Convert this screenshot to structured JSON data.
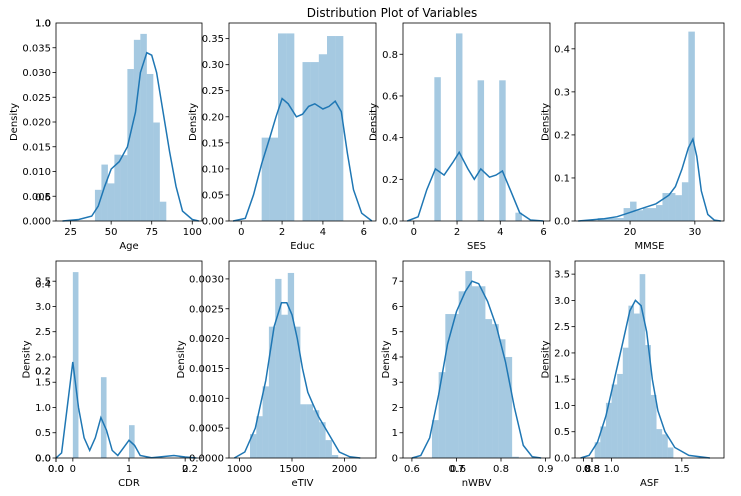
{
  "figure": {
    "title": "Distribution Plot of Variables"
  },
  "styles": {
    "bar_fill": "#1f77b4",
    "bar_opacity": 0.4,
    "line_color": "#1f77b4"
  },
  "overlay": {
    "xticks": [
      "0.0",
      "0.2",
      "0.4",
      "0.6",
      "0.8",
      "1.0"
    ],
    "yticks": [
      "0.0",
      "0.2",
      "0.4",
      "0.6",
      "0.8",
      "1.0"
    ]
  },
  "chart_data": [
    {
      "type": "histogram",
      "xlabel": "Age",
      "ylabel": "Density",
      "xlim": [
        16,
        106
      ],
      "ylim": [
        0,
        0.04
      ],
      "xticks": [
        "25",
        "50",
        "75",
        "100"
      ],
      "xtick_values": [
        25,
        50,
        75,
        100
      ],
      "yticks": [
        "0.000",
        "0.005",
        "0.010",
        "0.015",
        "0.020",
        "0.025",
        "0.030",
        "0.035"
      ],
      "ytick_values": [
        0,
        0.005,
        0.01,
        0.015,
        0.02,
        0.025,
        0.03,
        0.035
      ],
      "bins": [
        [
          40,
          44,
          0.0063
        ],
        [
          44,
          48,
          0.0114
        ],
        [
          48,
          52,
          0.0076
        ],
        [
          52,
          56,
          0.0134
        ],
        [
          56,
          60,
          0.0133
        ],
        [
          60,
          64,
          0.0307
        ],
        [
          64,
          68,
          0.0366
        ],
        [
          68,
          72,
          0.0378
        ],
        [
          72,
          76,
          0.0297
        ],
        [
          76,
          80,
          0.0199
        ],
        [
          80,
          84,
          0.0039
        ]
      ],
      "kde": [
        [
          20,
          0
        ],
        [
          30,
          0.0003
        ],
        [
          38,
          0.001
        ],
        [
          42,
          0.003
        ],
        [
          46,
          0.007
        ],
        [
          50,
          0.0105
        ],
        [
          55,
          0.012
        ],
        [
          60,
          0.015
        ],
        [
          65,
          0.022
        ],
        [
          68,
          0.03
        ],
        [
          72,
          0.034
        ],
        [
          75,
          0.0335
        ],
        [
          78,
          0.03
        ],
        [
          82,
          0.022
        ],
        [
          86,
          0.014
        ],
        [
          90,
          0.007
        ],
        [
          94,
          0.002
        ],
        [
          100,
          0.0003
        ],
        [
          104,
          0
        ]
      ]
    },
    {
      "type": "histogram",
      "xlabel": "Educ",
      "ylabel": "Density",
      "xlim": [
        -0.6,
        6.6
      ],
      "ylim": [
        0,
        0.38
      ],
      "xticks": [
        "0",
        "2",
        "4",
        "6"
      ],
      "xtick_values": [
        0,
        2,
        4,
        6
      ],
      "yticks": [
        "0.00",
        "0.05",
        "0.10",
        "0.15",
        "0.20",
        "0.25",
        "0.30",
        "0.35"
      ],
      "ytick_values": [
        0,
        0.05,
        0.1,
        0.15,
        0.2,
        0.25,
        0.3,
        0.35
      ],
      "bins": [
        [
          1.0,
          1.4,
          0.16
        ],
        [
          1.4,
          1.8,
          0.16
        ],
        [
          1.8,
          2.2,
          0.36
        ],
        [
          2.2,
          2.6,
          0.36
        ],
        [
          3.0,
          3.4,
          0.305
        ],
        [
          3.4,
          3.8,
          0.305
        ],
        [
          3.8,
          4.2,
          0.32
        ],
        [
          4.2,
          4.6,
          0.355
        ],
        [
          4.6,
          5.0,
          0.355
        ]
      ],
      "kde": [
        [
          -0.4,
          0
        ],
        [
          0.2,
          0.005
        ],
        [
          0.6,
          0.05
        ],
        [
          1.0,
          0.11
        ],
        [
          1.4,
          0.16
        ],
        [
          1.7,
          0.2
        ],
        [
          2.0,
          0.235
        ],
        [
          2.3,
          0.225
        ],
        [
          2.7,
          0.2
        ],
        [
          3.0,
          0.205
        ],
        [
          3.3,
          0.22
        ],
        [
          3.6,
          0.225
        ],
        [
          4.0,
          0.215
        ],
        [
          4.3,
          0.22
        ],
        [
          4.6,
          0.23
        ],
        [
          4.9,
          0.21
        ],
        [
          5.2,
          0.13
        ],
        [
          5.5,
          0.06
        ],
        [
          5.9,
          0.015
        ],
        [
          6.4,
          0
        ]
      ]
    },
    {
      "type": "histogram",
      "xlabel": "SES",
      "ylabel": "Density",
      "xlim": [
        -0.5,
        6.3
      ],
      "ylim": [
        0,
        0.95
      ],
      "xticks": [
        "0",
        "2",
        "4",
        "6"
      ],
      "xtick_values": [
        0,
        2,
        4,
        6
      ],
      "yticks": [
        "0.0",
        "0.2",
        "0.4",
        "0.6",
        "0.8"
      ],
      "ytick_values": [
        0,
        0.2,
        0.4,
        0.6,
        0.8
      ],
      "bins": [
        [
          0.95,
          1.25,
          0.69
        ],
        [
          1.95,
          2.25,
          0.9
        ],
        [
          2.95,
          3.25,
          0.675
        ],
        [
          3.95,
          4.25,
          0.675
        ],
        [
          4.7,
          5.0,
          0.04
        ]
      ],
      "kde": [
        [
          -0.3,
          0
        ],
        [
          0.2,
          0.02
        ],
        [
          0.6,
          0.15
        ],
        [
          1.0,
          0.25
        ],
        [
          1.4,
          0.22
        ],
        [
          1.8,
          0.28
        ],
        [
          2.1,
          0.33
        ],
        [
          2.5,
          0.25
        ],
        [
          2.8,
          0.2
        ],
        [
          3.1,
          0.25
        ],
        [
          3.5,
          0.21
        ],
        [
          3.8,
          0.22
        ],
        [
          4.1,
          0.24
        ],
        [
          4.5,
          0.14
        ],
        [
          4.9,
          0.04
        ],
        [
          5.4,
          0.005
        ],
        [
          6.0,
          0
        ]
      ]
    },
    {
      "type": "histogram",
      "xlabel": "MMSE",
      "ylabel": "Density",
      "xlim": [
        11.5,
        34.5
      ],
      "ylim": [
        0,
        0.46
      ],
      "xticks": [
        "20",
        "30"
      ],
      "xtick_values": [
        20,
        30
      ],
      "yticks": [
        "0.0",
        "0.1",
        "0.2",
        "0.3",
        "0.4"
      ],
      "ytick_values": [
        0,
        0.1,
        0.2,
        0.3,
        0.4
      ],
      "bins": [
        [
          15,
          16,
          0.007
        ],
        [
          16,
          17,
          0.007
        ],
        [
          17,
          18,
          0.007
        ],
        [
          18,
          19,
          0.007
        ],
        [
          19,
          20,
          0.03
        ],
        [
          20,
          21,
          0.045
        ],
        [
          21,
          22,
          0.025
        ],
        [
          22,
          23,
          0.03
        ],
        [
          23,
          24,
          0.03
        ],
        [
          24,
          25,
          0.037
        ],
        [
          25,
          26,
          0.065
        ],
        [
          26,
          27,
          0.065
        ],
        [
          27,
          28,
          0.06
        ],
        [
          28,
          29,
          0.09
        ],
        [
          29,
          30,
          0.44
        ]
      ],
      "kde": [
        [
          12,
          0
        ],
        [
          16,
          0.005
        ],
        [
          18,
          0.01
        ],
        [
          20,
          0.02
        ],
        [
          22,
          0.03
        ],
        [
          24,
          0.04
        ],
        [
          26,
          0.06
        ],
        [
          27,
          0.08
        ],
        [
          28,
          0.12
        ],
        [
          29,
          0.17
        ],
        [
          29.7,
          0.19
        ],
        [
          30.3,
          0.15
        ],
        [
          31,
          0.07
        ],
        [
          32,
          0.015
        ],
        [
          33,
          0.002
        ],
        [
          34,
          0
        ]
      ]
    },
    {
      "type": "histogram",
      "xlabel": "CDR",
      "ylabel": "Density",
      "xlim": [
        -0.3,
        2.3
      ],
      "ylim": [
        0,
        3.9
      ],
      "xticks": [
        "0",
        "1",
        "2"
      ],
      "xtick_values": [
        0,
        1,
        2
      ],
      "yticks": [
        "0.0",
        "0.5",
        "1.0",
        "1.5",
        "2.0",
        "2.5",
        "3.0",
        "3.5"
      ],
      "ytick_values": [
        0,
        0.5,
        1.0,
        1.5,
        2.0,
        2.5,
        3.0,
        3.5
      ],
      "bins": [
        [
          0,
          0.1,
          3.68
        ],
        [
          0.5,
          0.6,
          1.6
        ],
        [
          1.0,
          1.1,
          0.65
        ],
        [
          1.9,
          2.0,
          0.02
        ]
      ],
      "kde": [
        [
          -0.3,
          0
        ],
        [
          -0.2,
          0.1
        ],
        [
          -0.1,
          1.0
        ],
        [
          0,
          1.9
        ],
        [
          0.1,
          1.0
        ],
        [
          0.2,
          0.4
        ],
        [
          0.3,
          0.15
        ],
        [
          0.4,
          0.4
        ],
        [
          0.5,
          0.8
        ],
        [
          0.6,
          0.55
        ],
        [
          0.7,
          0.15
        ],
        [
          0.8,
          0.05
        ],
        [
          0.9,
          0.2
        ],
        [
          1.0,
          0.35
        ],
        [
          1.1,
          0.25
        ],
        [
          1.2,
          0.05
        ],
        [
          1.4,
          0.005
        ],
        [
          1.8,
          0.05
        ],
        [
          2.0,
          0.02
        ],
        [
          2.2,
          0
        ]
      ]
    },
    {
      "type": "histogram",
      "xlabel": "eTIV",
      "ylabel": "Density",
      "xlim": [
        900,
        2300
      ],
      "ylim": [
        0,
        0.0033
      ],
      "xticks": [
        "1000",
        "1500",
        "2000"
      ],
      "xtick_values": [
        1000,
        1500,
        2000
      ],
      "yticks": [
        "0.0000",
        "0.0005",
        "0.0010",
        "0.0015",
        "0.0020",
        "0.0025",
        "0.0030"
      ],
      "ytick_values": [
        0,
        0.0005,
        0.001,
        0.0015,
        0.002,
        0.0025,
        0.003
      ],
      "bins": [
        [
          1100,
          1160,
          0.0004
        ],
        [
          1160,
          1220,
          0.0007
        ],
        [
          1220,
          1280,
          0.0012
        ],
        [
          1280,
          1340,
          0.0022
        ],
        [
          1340,
          1400,
          0.003
        ],
        [
          1400,
          1460,
          0.0024
        ],
        [
          1460,
          1520,
          0.0031
        ],
        [
          1520,
          1580,
          0.0022
        ],
        [
          1580,
          1640,
          0.0009
        ],
        [
          1640,
          1700,
          0.0009
        ],
        [
          1700,
          1760,
          0.0008
        ],
        [
          1760,
          1820,
          0.0006
        ],
        [
          1820,
          1880,
          0.0003
        ],
        [
          1880,
          1940,
          5e-05
        ]
      ],
      "kde": [
        [
          950,
          0
        ],
        [
          1050,
          0.0001
        ],
        [
          1150,
          0.0005
        ],
        [
          1250,
          0.0013
        ],
        [
          1330,
          0.0022
        ],
        [
          1400,
          0.0026
        ],
        [
          1450,
          0.0026
        ],
        [
          1500,
          0.0024
        ],
        [
          1550,
          0.002
        ],
        [
          1600,
          0.0015
        ],
        [
          1650,
          0.0011
        ],
        [
          1700,
          0.0009
        ],
        [
          1750,
          0.0007
        ],
        [
          1850,
          0.0004
        ],
        [
          1950,
          0.0001
        ],
        [
          2050,
          2e-05
        ],
        [
          2150,
          0
        ]
      ]
    },
    {
      "type": "histogram",
      "xlabel": "nWBV",
      "ylabel": "Density",
      "xlim": [
        0.58,
        0.91
      ],
      "ylim": [
        0,
        7.8
      ],
      "xticks": [
        "0.6",
        "0.7",
        "0.8",
        "0.9"
      ],
      "xtick_values": [
        0.6,
        0.7,
        0.8,
        0.9
      ],
      "yticks": [
        "0",
        "1",
        "2",
        "3",
        "4",
        "5",
        "6",
        "7"
      ],
      "ytick_values": [
        0,
        1,
        2,
        3,
        4,
        5,
        6,
        7
      ],
      "bins": [
        [
          0.645,
          0.66,
          1.5
        ],
        [
          0.66,
          0.675,
          3.4
        ],
        [
          0.675,
          0.69,
          5.7
        ],
        [
          0.69,
          0.705,
          5.7
        ],
        [
          0.705,
          0.72,
          6.6
        ],
        [
          0.72,
          0.735,
          7.4
        ],
        [
          0.735,
          0.75,
          6.8
        ],
        [
          0.75,
          0.765,
          6.8
        ],
        [
          0.765,
          0.78,
          5.5
        ],
        [
          0.78,
          0.795,
          5.3
        ],
        [
          0.795,
          0.81,
          4.7
        ],
        [
          0.81,
          0.825,
          4.0
        ],
        [
          0.825,
          0.84,
          0.05
        ]
      ],
      "kde": [
        [
          0.6,
          0
        ],
        [
          0.62,
          0.1
        ],
        [
          0.64,
          0.8
        ],
        [
          0.66,
          2.5
        ],
        [
          0.68,
          4.5
        ],
        [
          0.7,
          5.8
        ],
        [
          0.72,
          6.6
        ],
        [
          0.735,
          7.0
        ],
        [
          0.75,
          6.9
        ],
        [
          0.77,
          6.2
        ],
        [
          0.79,
          5.2
        ],
        [
          0.81,
          3.8
        ],
        [
          0.83,
          2.0
        ],
        [
          0.85,
          0.5
        ],
        [
          0.87,
          0.05
        ],
        [
          0.89,
          0
        ]
      ]
    },
    {
      "type": "histogram",
      "xlabel": "ASF",
      "ylabel": "Density",
      "xlim": [
        0.74,
        1.8
      ],
      "ylim": [
        0,
        3.75
      ],
      "xticks": [
        "0.8",
        "1.0",
        "1.5"
      ],
      "xtick_values": [
        0.8,
        1.0,
        1.5
      ],
      "yticks": [
        "0.0",
        "0.5",
        "1.0",
        "1.5",
        "2.0",
        "2.5",
        "3.0",
        "3.5"
      ],
      "ytick_values": [
        0,
        0.5,
        1.0,
        1.5,
        2.0,
        2.5,
        3.0,
        3.5
      ],
      "bins": [
        [
          0.88,
          0.92,
          0.3
        ],
        [
          0.92,
          0.96,
          0.6
        ],
        [
          0.96,
          1.0,
          1.05
        ],
        [
          1.0,
          1.04,
          1.4
        ],
        [
          1.04,
          1.08,
          1.6
        ],
        [
          1.08,
          1.12,
          2.1
        ],
        [
          1.12,
          1.16,
          2.9
        ],
        [
          1.16,
          1.2,
          2.75
        ],
        [
          1.2,
          1.24,
          3.5
        ],
        [
          1.24,
          1.28,
          2.15
        ],
        [
          1.28,
          1.32,
          1.2
        ],
        [
          1.32,
          1.36,
          0.55
        ],
        [
          1.36,
          1.4,
          0.45
        ],
        [
          1.4,
          1.44,
          0.2
        ]
      ],
      "kde": [
        [
          0.78,
          0
        ],
        [
          0.84,
          0.05
        ],
        [
          0.9,
          0.3
        ],
        [
          0.96,
          0.8
        ],
        [
          1.02,
          1.5
        ],
        [
          1.08,
          2.2
        ],
        [
          1.13,
          2.8
        ],
        [
          1.17,
          3.0
        ],
        [
          1.21,
          2.9
        ],
        [
          1.25,
          2.4
        ],
        [
          1.29,
          1.5
        ],
        [
          1.33,
          0.9
        ],
        [
          1.38,
          0.5
        ],
        [
          1.45,
          0.2
        ],
        [
          1.55,
          0.05
        ],
        [
          1.7,
          0
        ]
      ]
    }
  ]
}
